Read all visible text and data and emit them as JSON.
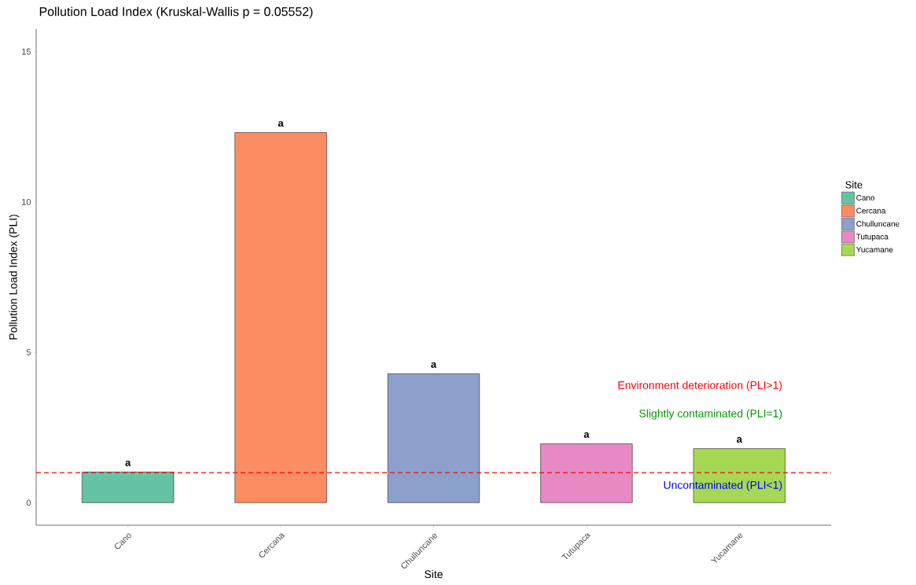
{
  "chart_data": {
    "type": "bar",
    "title": "Pollution Load Index (Kruskal-Wallis p = 0.05552)",
    "xlabel": "Site",
    "ylabel": "Pollution Load Index (PLI)",
    "legend_title": "Site",
    "categories": [
      "Cano",
      "Cercana",
      "Chulluncane",
      "Tutupaca",
      "Yucamane"
    ],
    "series": [
      {
        "name": "Cano",
        "color": "#66c2a5",
        "values": [
          1.02,
          null,
          null,
          null,
          null
        ]
      },
      {
        "name": "Cercana",
        "color": "#fc8d62",
        "values": [
          null,
          12.31,
          null,
          null,
          null
        ]
      },
      {
        "name": "Chulluncane",
        "color": "#8da0cb",
        "values": [
          null,
          null,
          4.29,
          null,
          null
        ]
      },
      {
        "name": "Tutupaca",
        "color": "#e78ac3",
        "values": [
          null,
          null,
          null,
          1.96,
          null
        ]
      },
      {
        "name": "Yucamane",
        "color": "#a6d854",
        "values": [
          null,
          null,
          null,
          null,
          1.8
        ]
      }
    ],
    "stacked": true,
    "ylim": [
      -0.75,
      15.75
    ],
    "yticks": [
      0,
      5,
      10,
      15
    ],
    "ref_lines": [
      {
        "axis": "y",
        "value": 1,
        "color": "#ff0000",
        "line_style": "dashed"
      }
    ],
    "annotations": [
      {
        "text": "a",
        "x": "Cano",
        "y": 1.02
      },
      {
        "text": "a",
        "x": "Cercana",
        "y": 12.31
      },
      {
        "text": "a",
        "x": "Chulluncane",
        "y": 4.29
      },
      {
        "text": "a",
        "x": "Tutupaca",
        "y": 1.96
      },
      {
        "text": "a",
        "x": "Yucamane",
        "y": 1.8
      },
      "Environment deterioration (PLI>1)",
      "Slightly contaminated (PLI=1)",
      "Uncontaminated (PLI<1)"
    ],
    "grid": false,
    "legend": "right"
  }
}
